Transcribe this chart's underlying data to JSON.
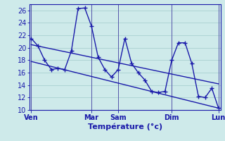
{
  "xlabel": "Température (°c)",
  "bg_color": "#ceeaea",
  "grid_color": "#a8d0d0",
  "line_color": "#1a1aaa",
  "spine_color": "#1a1aaa",
  "ylim": [
    10,
    27
  ],
  "xlim": [
    -0.3,
    28.3
  ],
  "yticks": [
    10,
    12,
    14,
    16,
    18,
    20,
    22,
    24,
    26
  ],
  "day_labels": [
    "Ven",
    "Mar",
    "Sam",
    "Dim",
    "Lun"
  ],
  "day_positions": [
    0,
    9,
    13,
    21,
    28
  ],
  "main_x": [
    0,
    1,
    2,
    3,
    4,
    5,
    6,
    7,
    8,
    9,
    10,
    11,
    12,
    13,
    14,
    15,
    16,
    17,
    18,
    19,
    20,
    21,
    22,
    23,
    24,
    25,
    26,
    27,
    28
  ],
  "main_y": [
    21.5,
    20.3,
    18.0,
    16.5,
    16.7,
    16.5,
    19.5,
    26.3,
    26.4,
    23.5,
    18.5,
    16.5,
    15.3,
    16.5,
    21.5,
    17.5,
    16.0,
    14.8,
    13.0,
    12.8,
    13.0,
    18.0,
    20.8,
    20.8,
    17.5,
    12.2,
    12.0,
    13.5,
    10.3
  ],
  "trend1_x": [
    0,
    28
  ],
  "trend1_y": [
    20.5,
    14.2
  ],
  "trend2_x": [
    0,
    28
  ],
  "trend2_y": [
    17.8,
    10.3
  ],
  "xlabel_fontsize": 8,
  "tick_fontsize": 7
}
